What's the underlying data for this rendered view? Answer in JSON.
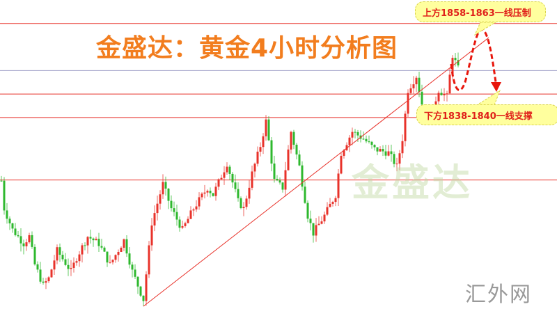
{
  "chart_data": {
    "type": "candlestick",
    "title": "金盛达：黄金4小时分析图",
    "ylim": [
      1775,
      1867
    ],
    "up_color": "#e8322a",
    "down_color": "#2eb82e",
    "price_path": [
      [
        0,
        1813.2
      ],
      [
        1,
        1804.9
      ],
      [
        4,
        1798.6
      ],
      [
        8,
        1794.5
      ],
      [
        10,
        1796.6
      ],
      [
        12,
        1788.2
      ],
      [
        15,
        1782.0
      ],
      [
        17,
        1784.1
      ],
      [
        20,
        1792.4
      ],
      [
        25,
        1786.2
      ],
      [
        27,
        1790.3
      ],
      [
        31,
        1796.6
      ],
      [
        35,
        1794.5
      ],
      [
        39,
        1788.2
      ],
      [
        44,
        1795.5
      ],
      [
        47,
        1786.2
      ],
      [
        50,
        1779.9
      ],
      [
        51,
        1777.8
      ],
      [
        54,
        1800.7
      ],
      [
        58,
        1812.2
      ],
      [
        61,
        1804.9
      ],
      [
        65,
        1798.6
      ],
      [
        69,
        1804.9
      ],
      [
        74,
        1811.1
      ],
      [
        76,
        1809.0
      ],
      [
        81,
        1818.4
      ],
      [
        85,
        1807.0
      ],
      [
        87,
        1804.9
      ],
      [
        90,
        1815.3
      ],
      [
        93,
        1823.6
      ],
      [
        95,
        1830.9
      ],
      [
        98,
        1813.2
      ],
      [
        101,
        1811.1
      ],
      [
        104,
        1827.8
      ],
      [
        107,
        1817.4
      ],
      [
        110,
        1802.8
      ],
      [
        112,
        1797.6
      ],
      [
        116,
        1802.8
      ],
      [
        120,
        1809.0
      ],
      [
        122,
        1821.5
      ],
      [
        126,
        1827.8
      ],
      [
        130,
        1825.7
      ],
      [
        134,
        1822.6
      ],
      [
        139,
        1821.5
      ],
      [
        142,
        1817.4
      ],
      [
        144,
        1825.7
      ],
      [
        146,
        1840.2
      ],
      [
        149,
        1844.4
      ],
      [
        151,
        1836.1
      ],
      [
        154,
        1831.9
      ],
      [
        157,
        1840.2
      ],
      [
        160,
        1838.2
      ],
      [
        162,
        1850.6
      ],
      [
        164,
        1846.5
      ]
    ],
    "horizontal_lines": [
      {
        "price": 1860.0,
        "color": "#e8322a"
      },
      {
        "price": 1846.0,
        "color": "#a0a0c8"
      },
      {
        "price": 1839.0,
        "color": "#e8322a"
      },
      {
        "price": 1832.0,
        "color": "#e8322a"
      },
      {
        "price": 1813.4,
        "color": "#e8322a"
      }
    ],
    "trendline": {
      "from": [
        51,
        1775.8
      ],
      "to": [
        175,
        1855.8
      ],
      "color": "#e8322a"
    },
    "annotations": {
      "resistance": "上方1858-1863一线压制",
      "support": "下方1838-1840一线支撑"
    }
  },
  "watermark": "金盛达",
  "site_mark": "汇外网"
}
